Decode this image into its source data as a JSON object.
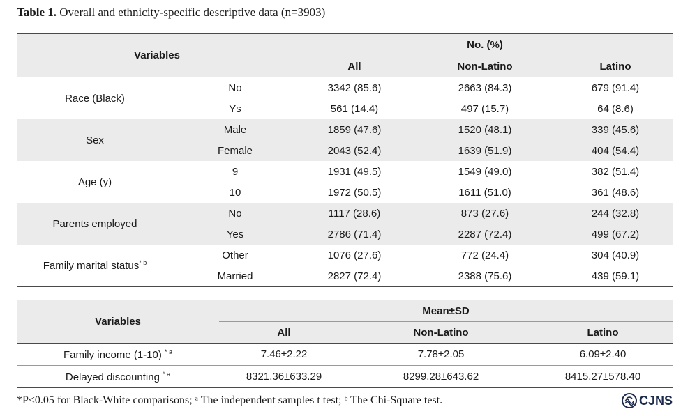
{
  "caption": {
    "label": "Table 1.",
    "text": " Overall and ethnicity-specific descriptive data (n=3903)"
  },
  "table1": {
    "variables_header": "Variables",
    "group_header": "No. (%)",
    "columns": [
      "All",
      "Non-Latino",
      "Latino"
    ],
    "groups": [
      {
        "name": "Race (Black)",
        "sup": "",
        "rows": [
          {
            "level": "No",
            "values": [
              "3342 (85.6)",
              "2663 (84.3)",
              "679 (91.4)"
            ]
          },
          {
            "level": "Ys",
            "values": [
              "561 (14.4)",
              "497 (15.7)",
              "64 (8.6)"
            ]
          }
        ]
      },
      {
        "name": "Sex",
        "sup": "",
        "rows": [
          {
            "level": "Male",
            "values": [
              "1859 (47.6)",
              "1520 (48.1)",
              "339 (45.6)"
            ]
          },
          {
            "level": "Female",
            "values": [
              "2043 (52.4)",
              "1639 (51.9)",
              "404 (54.4)"
            ]
          }
        ]
      },
      {
        "name": "Age (y)",
        "sup": "",
        "rows": [
          {
            "level": "9",
            "values": [
              "1931 (49.5)",
              "1549 (49.0)",
              "382 (51.4)"
            ]
          },
          {
            "level": "10",
            "values": [
              "1972 (50.5)",
              "1611 (51.0)",
              "361 (48.6)"
            ]
          }
        ]
      },
      {
        "name": "Parents employed",
        "sup": "",
        "rows": [
          {
            "level": "No",
            "values": [
              "1117 (28.6)",
              "873 (27.6)",
              "244 (32.8)"
            ]
          },
          {
            "level": "Yes",
            "values": [
              "2786 (71.4)",
              "2287 (72.4)",
              "499 (67.2)"
            ]
          }
        ]
      },
      {
        "name": "Family marital status",
        "sup": "* b",
        "rows": [
          {
            "level": "Other",
            "values": [
              "1076 (27.6)",
              "772 (24.4)",
              "304 (40.9)"
            ]
          },
          {
            "level": "Married",
            "values": [
              "2827 (72.4)",
              "2388 (75.6)",
              "439 (59.1)"
            ]
          }
        ]
      }
    ]
  },
  "table2": {
    "variables_header": "Variables",
    "group_header": "Mean±SD",
    "columns": [
      "All",
      "Non-Latino",
      "Latino"
    ],
    "rows": [
      {
        "name": "Family income (1-10)",
        "sup": "* a",
        "values": [
          "7.46±2.22",
          "7.78±2.05",
          "6.09±2.40"
        ]
      },
      {
        "name": "Delayed discounting",
        "sup": "* a",
        "values": [
          "8321.36±633.29",
          "8299.28±643.62",
          "8415.27±578.40"
        ]
      }
    ]
  },
  "footnote": "*P<0.05 for Black-White comparisons; ᵃ The independent samples t test; ᵇ The Chi-Square test.",
  "logo": {
    "text": "CJNS",
    "icon": "cjns-logo-icon",
    "color": "#1d2b4d"
  }
}
